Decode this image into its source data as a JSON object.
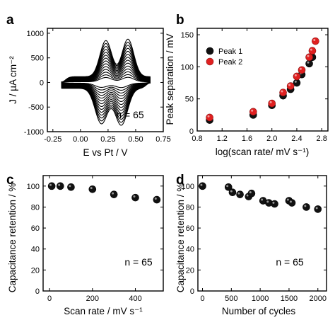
{
  "colors": {
    "axis": "#000000",
    "cv_curve": "#000000",
    "black_marker": "#111111",
    "red_marker": "#e02020"
  },
  "chart_data": [
    {
      "panel": "a",
      "type": "line",
      "xlabel": "E vs Pt / V",
      "ylabel": "J / µA cm⁻²",
      "xlim": [
        -0.3,
        0.75
      ],
      "ylim": [
        -1000,
        1100
      ],
      "xticks": [
        "-0.25",
        "0.00",
        "0.25",
        "0.50",
        "0.75"
      ],
      "xtick_values": [
        -0.25,
        0.0,
        0.25,
        0.5,
        0.75
      ],
      "yticks": [
        "-1000",
        "-500",
        "0",
        "500",
        "1000"
      ],
      "ytick_values": [
        -1000,
        -500,
        0,
        500,
        1000
      ],
      "annotation": "n = 65",
      "grid": false,
      "cv_loops": {
        "count": 14,
        "potential_window": [
          -0.17,
          0.63
        ],
        "anodic_peaks_V": [
          0.23,
          0.43
        ],
        "cathodic_peaks_V": [
          0.19,
          0.37
        ],
        "max_current_uA_cm2": 880,
        "min_current_uA_cm2": -870
      }
    },
    {
      "panel": "b",
      "type": "scatter",
      "xlabel": "log(scan rate/ mV s⁻¹)",
      "ylabel": "Peak separation / mV",
      "xlim": [
        0.8,
        2.9
      ],
      "ylim": [
        0,
        160
      ],
      "xticks": [
        "0.8",
        "1.2",
        "1.6",
        "2.0",
        "2.4",
        "2.8"
      ],
      "xtick_values": [
        0.8,
        1.2,
        1.6,
        2.0,
        2.4,
        2.8
      ],
      "yticks": [
        "0",
        "50",
        "100",
        "150"
      ],
      "ytick_values": [
        0,
        50,
        100,
        150
      ],
      "legend_position": "top-left",
      "grid": false,
      "series": [
        {
          "name": "Peak 1",
          "color": "#111111",
          "x": [
            1.0,
            1.7,
            2.0,
            2.18,
            2.3,
            2.4,
            2.48,
            2.6,
            2.65
          ],
          "y": [
            17,
            25,
            40,
            55,
            65,
            75,
            88,
            105,
            115
          ]
        },
        {
          "name": "Peak 2",
          "color": "#e02020",
          "x": [
            1.0,
            1.7,
            2.0,
            2.18,
            2.3,
            2.4,
            2.48,
            2.6,
            2.65,
            2.7
          ],
          "y": [
            21,
            30,
            43,
            60,
            70,
            85,
            95,
            115,
            125,
            140
          ]
        }
      ]
    },
    {
      "panel": "c",
      "type": "scatter",
      "xlabel": "Scan rate / mV s⁻¹",
      "ylabel": "Capacitance retention / %",
      "xlim": [
        -30,
        530
      ],
      "ylim": [
        0,
        110
      ],
      "xticks": [
        "0",
        "200",
        "400"
      ],
      "xtick_values": [
        0,
        200,
        400
      ],
      "yticks": [
        "0",
        "20",
        "40",
        "60",
        "80",
        "100"
      ],
      "ytick_values": [
        0,
        20,
        40,
        60,
        80,
        100
      ],
      "annotation": "n = 65",
      "grid": false,
      "series": [
        {
          "color": "#111111",
          "x": [
            10,
            50,
            100,
            200,
            300,
            400,
            500
          ],
          "y": [
            100,
            100,
            99,
            97,
            92,
            89,
            87
          ]
        }
      ]
    },
    {
      "panel": "d",
      "type": "scatter",
      "xlabel": "Number of cycles",
      "ylabel": "Capacitance retention / %",
      "xlim": [
        -80,
        2150
      ],
      "ylim": [
        0,
        110
      ],
      "xticks": [
        "0",
        "500",
        "1000",
        "1500",
        "2000"
      ],
      "xtick_values": [
        0,
        500,
        1000,
        1500,
        2000
      ],
      "yticks": [
        "0",
        "20",
        "40",
        "60",
        "80",
        "100"
      ],
      "ytick_values": [
        0,
        20,
        40,
        60,
        80,
        100
      ],
      "annotation": "n = 65",
      "grid": false,
      "series": [
        {
          "color": "#111111",
          "x": [
            0,
            450,
            520,
            650,
            800,
            850,
            1050,
            1150,
            1250,
            1500,
            1550,
            1800,
            2000
          ],
          "y": [
            100,
            99,
            94,
            92,
            90,
            93,
            86,
            84,
            83,
            86,
            84,
            80,
            78
          ]
        }
      ]
    }
  ]
}
